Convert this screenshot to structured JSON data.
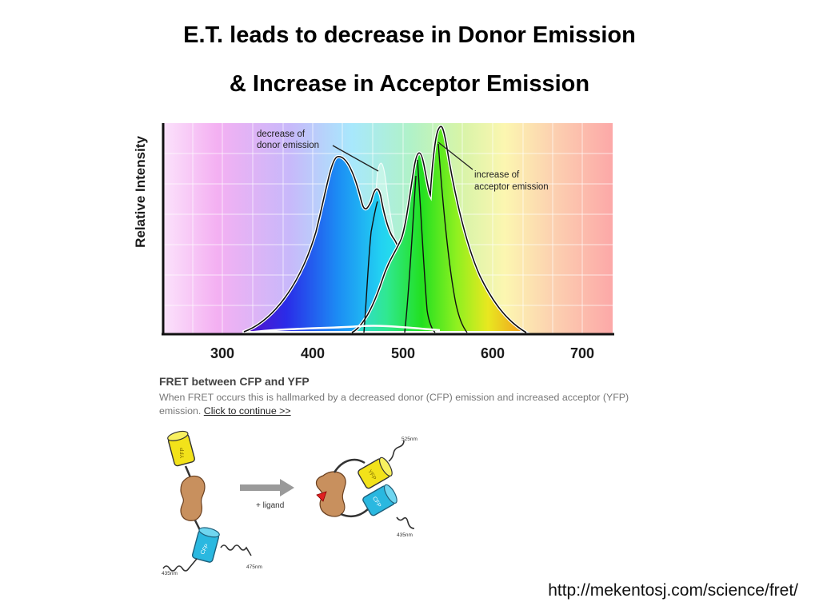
{
  "title": {
    "line1": "E.T. leads to decrease in Donor Emission",
    "line2": "& Increase in Acceptor Emission"
  },
  "spectrum": {
    "y_axis_label": "Relative Intensity",
    "x_ticks": [
      "300",
      "400",
      "500",
      "600",
      "700"
    ],
    "annotation_donor": [
      "decrease of",
      "donor emission"
    ],
    "annotation_acceptor": [
      "increase of",
      "acceptor emission"
    ],
    "colors": {
      "cfp_fill_start": "#3a18d8",
      "cfp_fill_end": "#28d8f0",
      "yfp_fill_start": "#26d0d8",
      "yfp_fill_end": "#f2a81c",
      "outline": "#101010",
      "background_left": "#f6b0f4",
      "background_right": "#fca4a4"
    }
  },
  "caption": {
    "heading": "FRET between CFP and YFP",
    "body": "When FRET occurs this is hallmarked by a decreased donor (CFP) emission and increased acceptor (YFP) emission.",
    "link": "Click to continue >>"
  },
  "illustration": {
    "yfp_label": "YFP",
    "cfp_label": "CFP",
    "arrow_label": "+ ligand",
    "left_wavelength_in": "435nm",
    "left_wavelength_out": "475nm",
    "right_wavelength_out": "525nm",
    "right_wavelength_in": "435nm",
    "colors": {
      "yfp": "#f2e21a",
      "cfp": "#2ab8e0",
      "protein": "#c8905e",
      "ligand": "#e02020",
      "arrow": "#9a9a9a"
    }
  },
  "source_url": "http://mekentosj.com/science/fret/"
}
